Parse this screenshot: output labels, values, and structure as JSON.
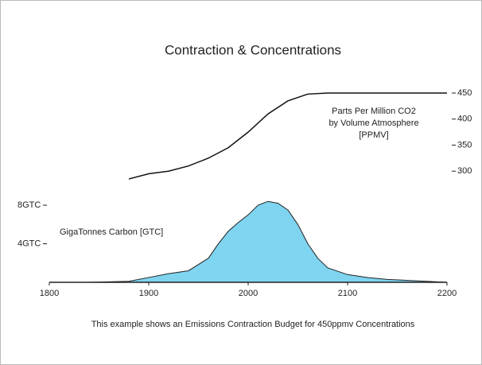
{
  "chart_data": {
    "type": "area-line",
    "title": "Contraction & Concentrations",
    "caption": "This example shows an Emissions Contraction Budget for 450ppmv Concentrations",
    "xlim": [
      1800,
      2200
    ],
    "xticks": [
      1800,
      1900,
      2000,
      2100,
      2200
    ],
    "ylim": [
      0,
      8.5
    ],
    "yticks": [
      {
        "value": 4,
        "label": "4GTC"
      },
      {
        "value": 8,
        "label": "8GTC"
      }
    ],
    "y2lim": [
      250,
      450
    ],
    "y2ticks": [
      300,
      350,
      400,
      450
    ],
    "series": [
      {
        "name": "GigaTonnes Carbon [GTC]",
        "color": "#7fd4f0",
        "x": [
          1800,
          1820,
          1840,
          1860,
          1880,
          1900,
          1920,
          1940,
          1960,
          1970,
          1980,
          1990,
          2000,
          2010,
          2020,
          2030,
          2040,
          2050,
          2060,
          2070,
          2080,
          2100,
          2120,
          2140,
          2160,
          2180,
          2200
        ],
        "values": [
          0,
          0,
          0,
          0.05,
          0.1,
          0.5,
          0.9,
          1.2,
          2.5,
          4.0,
          5.3,
          6.2,
          7.0,
          8.0,
          8.4,
          8.2,
          7.5,
          6.0,
          4.0,
          2.5,
          1.5,
          0.8,
          0.5,
          0.3,
          0.2,
          0.1,
          0
        ]
      },
      {
        "name": "Parts Per Million CO2 by Volume Atmosphere [PPMV]",
        "color": "#111111",
        "axis": "y2",
        "x": [
          1880,
          1900,
          1920,
          1940,
          1960,
          1980,
          2000,
          2020,
          2040,
          2060,
          2080,
          2100,
          2200
        ],
        "values": [
          285,
          295,
          300,
          310,
          325,
          345,
          375,
          410,
          435,
          448,
          450,
          450,
          450
        ]
      }
    ]
  }
}
